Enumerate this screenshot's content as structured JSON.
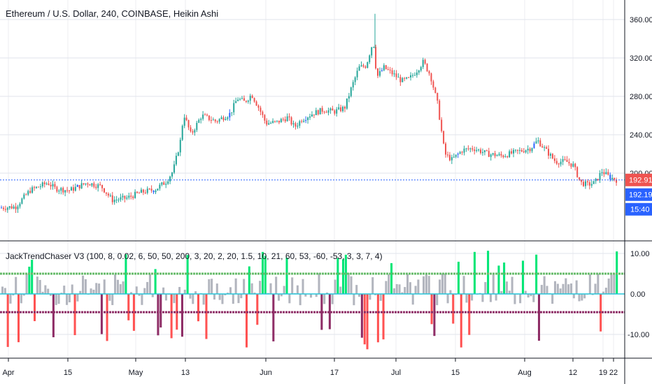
{
  "chart_title": "Ethereum / U.S. Dollar, 240, COINBASE, Heikin Ashi",
  "indicator_title": "JackTrendChaser V3 (100, 8, 0.02, 6, 50, 50, 200, 3, 20, 2, 20, 1.5, 10, 21, 60, 53, -60, -53, 3, 3, 7, 4)",
  "colors": {
    "up": "#26a69a",
    "down": "#ef5350",
    "blue_candle": "#2962ff",
    "grid": "#e0e3eb",
    "last_price_line": "#2962ff",
    "ind_green": "#00e676",
    "ind_red": "#ff5252",
    "ind_gray": "#b2b5be",
    "ind_purple": "#8e2d66",
    "ind_lime": "#66bb6a",
    "ind_teal": "#26c6da"
  },
  "labels": {
    "last_price": "192.91",
    "second_price": "192.19",
    "countdown": "15:40"
  },
  "chart_data": [
    {
      "type": "candlestick",
      "title": "Ethereum / U.S. Dollar, 240, COINBASE, Heikin Ashi",
      "x_tick_labels": [
        "Apr",
        "15",
        "May",
        "13",
        "Jun",
        "17",
        "Jul",
        "15",
        "Aug",
        "12",
        "19",
        "22"
      ],
      "y_tick_labels": [
        "360.00",
        "320.00",
        "280.00",
        "240.00",
        "200.00"
      ],
      "y_ticks": [
        360,
        320,
        280,
        240,
        200
      ],
      "ylim": [
        160,
        368
      ],
      "grid": true,
      "last_price": 192.91,
      "approx_close_path": [
        {
          "t": 0,
          "v": 164
        },
        {
          "t": 4,
          "v": 165
        },
        {
          "t": 8,
          "v": 182
        },
        {
          "t": 13,
          "v": 190
        },
        {
          "t": 15,
          "v": 184
        },
        {
          "t": 19,
          "v": 182
        },
        {
          "t": 24,
          "v": 190
        },
        {
          "t": 28,
          "v": 186
        },
        {
          "t": 31,
          "v": 172
        },
        {
          "t": 35,
          "v": 174
        },
        {
          "t": 39,
          "v": 180
        },
        {
          "t": 43,
          "v": 183
        },
        {
          "t": 46,
          "v": 191
        },
        {
          "t": 48,
          "v": 202
        },
        {
          "t": 50,
          "v": 232
        },
        {
          "t": 51,
          "v": 262
        },
        {
          "t": 53,
          "v": 240
        },
        {
          "t": 56,
          "v": 260
        },
        {
          "t": 60,
          "v": 254
        },
        {
          "t": 64,
          "v": 262
        },
        {
          "t": 66,
          "v": 278
        },
        {
          "t": 68,
          "v": 274
        },
        {
          "t": 70,
          "v": 282
        },
        {
          "t": 72,
          "v": 268
        },
        {
          "t": 74,
          "v": 252
        },
        {
          "t": 77,
          "v": 253
        },
        {
          "t": 80,
          "v": 258
        },
        {
          "t": 82,
          "v": 248
        },
        {
          "t": 84,
          "v": 256
        },
        {
          "t": 87,
          "v": 262
        },
        {
          "t": 90,
          "v": 266
        },
        {
          "t": 93,
          "v": 264
        },
        {
          "t": 96,
          "v": 268
        },
        {
          "t": 98,
          "v": 290
        },
        {
          "t": 100,
          "v": 310
        },
        {
          "t": 102,
          "v": 312
        },
        {
          "t": 104,
          "v": 338
        },
        {
          "t": 105,
          "v": 300
        },
        {
          "t": 107,
          "v": 310
        },
        {
          "t": 110,
          "v": 302
        },
        {
          "t": 112,
          "v": 296
        },
        {
          "t": 114,
          "v": 298
        },
        {
          "t": 116,
          "v": 306
        },
        {
          "t": 118,
          "v": 316
        },
        {
          "t": 120,
          "v": 302
        },
        {
          "t": 122,
          "v": 272
        },
        {
          "t": 124,
          "v": 220
        },
        {
          "t": 126,
          "v": 214
        },
        {
          "t": 129,
          "v": 224
        },
        {
          "t": 132,
          "v": 226
        },
        {
          "t": 136,
          "v": 220
        },
        {
          "t": 140,
          "v": 218
        },
        {
          "t": 144,
          "v": 222
        },
        {
          "t": 148,
          "v": 226
        },
        {
          "t": 150,
          "v": 234
        },
        {
          "t": 152,
          "v": 225
        },
        {
          "t": 155,
          "v": 212
        },
        {
          "t": 158,
          "v": 212
        },
        {
          "t": 160,
          "v": 208
        },
        {
          "t": 162,
          "v": 190
        },
        {
          "t": 164,
          "v": 188
        },
        {
          "t": 166,
          "v": 190
        },
        {
          "t": 168,
          "v": 202
        },
        {
          "t": 170,
          "v": 196
        },
        {
          "t": 172,
          "v": 193
        }
      ]
    },
    {
      "type": "bar",
      "title": "JackTrendChaser V3 (100, 8, 0.02, 6, 50, 50, 200, 3, 20, 2, 20, 1.5, 10, 21, 60, 53, -60, -53, 3, 3, 7, 4)",
      "y_tick_labels": [
        "10.00",
        "0.00",
        "-10.00"
      ],
      "y_ticks": [
        10,
        0,
        -10
      ],
      "ylim": [
        -14,
        12
      ],
      "upper_band": 5,
      "lower_band": -4.5,
      "zero_line": 0,
      "grid": true
    }
  ]
}
